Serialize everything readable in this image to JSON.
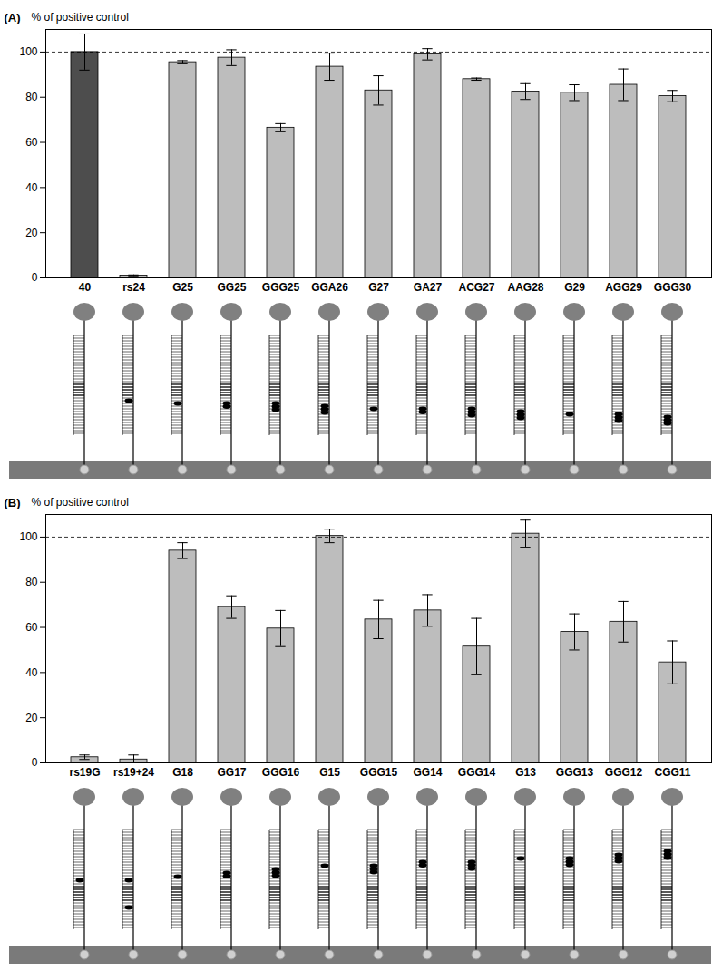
{
  "chart_data": [
    {
      "type": "bar",
      "title": "(A)",
      "y_label": "% of positive control",
      "categories": [
        "40",
        "rs24",
        "G25",
        "GG25",
        "GGG25",
        "GGA26",
        "G27",
        "GA27",
        "ACG27",
        "AAG28",
        "G29",
        "AGG29",
        "GGG30"
      ],
      "values": [
        100,
        1,
        95.5,
        97.5,
        66.5,
        93.5,
        83,
        99,
        88,
        82.5,
        82,
        85.5,
        80.5
      ],
      "errors": [
        8,
        0.3,
        0.7,
        3.5,
        1.8,
        6,
        6.5,
        2.5,
        0.5,
        3.5,
        3.5,
        7,
        2.5
      ],
      "colors": [
        "#4d4d4d",
        "#bdbdbd",
        "#bdbdbd",
        "#bdbdbd",
        "#bdbdbd",
        "#bdbdbd",
        "#bdbdbd",
        "#bdbdbd",
        "#bdbdbd",
        "#bdbdbd",
        "#bdbdbd",
        "#bdbdbd",
        "#bdbdbd"
      ],
      "reference_line": 100,
      "ylim": [
        0,
        110
      ],
      "yticks": [
        0,
        20,
        40,
        60,
        80,
        100
      ],
      "grid": false
    },
    {
      "type": "bar",
      "title": "(B)",
      "y_label": "% of positive control",
      "categories": [
        "rs19G",
        "rs19+24",
        "G18",
        "GG17",
        "GGG16",
        "G15",
        "GGG15",
        "GG14",
        "GGG14",
        "G13",
        "GGG13",
        "GGG12",
        "CGG11"
      ],
      "values": [
        2.5,
        1.5,
        94,
        69,
        59.5,
        100.5,
        63.5,
        67.5,
        51.5,
        101.5,
        58,
        62.5,
        44.5
      ],
      "errors": [
        1,
        2,
        3.5,
        5,
        8,
        3,
        8.5,
        7,
        12.5,
        6,
        8,
        9,
        9.5
      ],
      "color": "#bdbdbd",
      "reference_line": 100,
      "ylim": [
        0,
        110
      ],
      "yticks": [
        0,
        20,
        40,
        60,
        80,
        100
      ],
      "grid": false
    }
  ]
}
